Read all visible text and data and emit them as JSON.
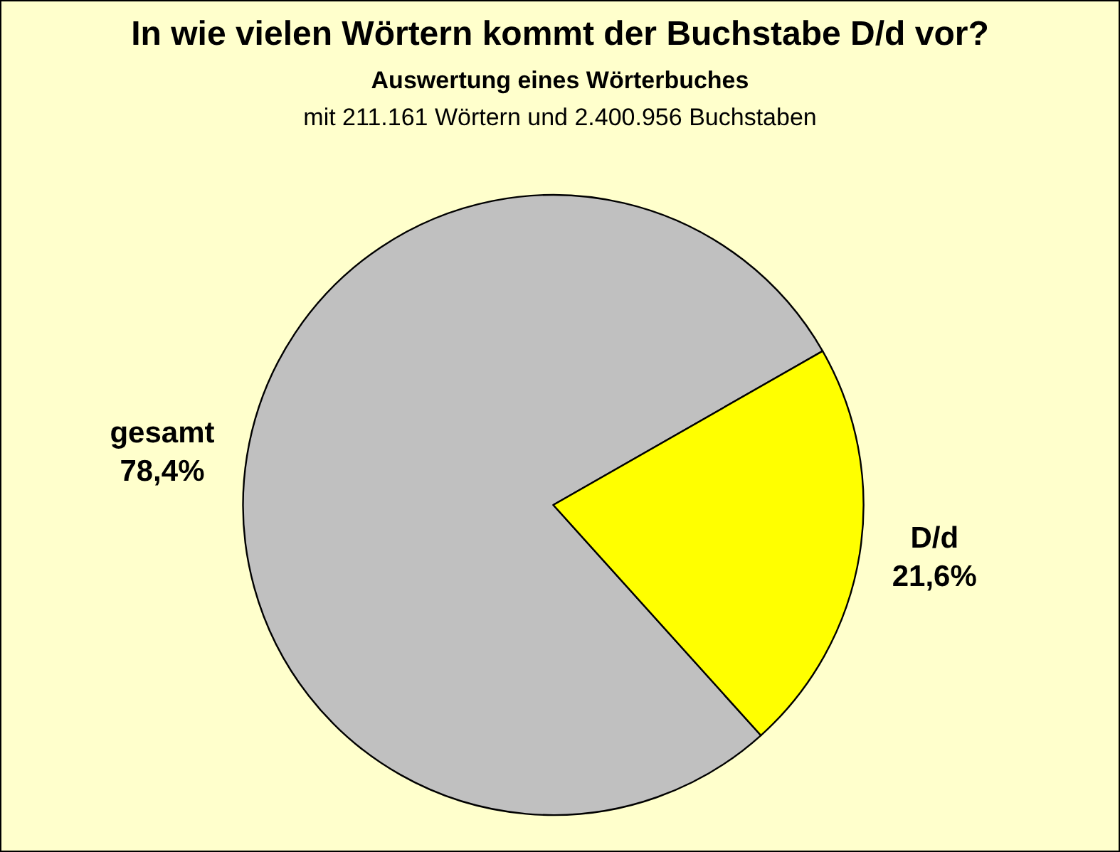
{
  "chart_data": {
    "type": "pie",
    "title": "In wie vielen Wörtern kommt der Buchstabe D/d vor?",
    "subtitle": "Auswertung eines Wörterbuches",
    "annotations": [
      "mit 211.161 Wörtern und 2.400.956 Buchstaben"
    ],
    "categories": [
      "gesamt",
      "D/d"
    ],
    "values": [
      78.4,
      21.6
    ],
    "colors": [
      "#c0c0c0",
      "#ffff00"
    ],
    "value_labels": [
      "78,4%",
      "21,6%"
    ]
  }
}
